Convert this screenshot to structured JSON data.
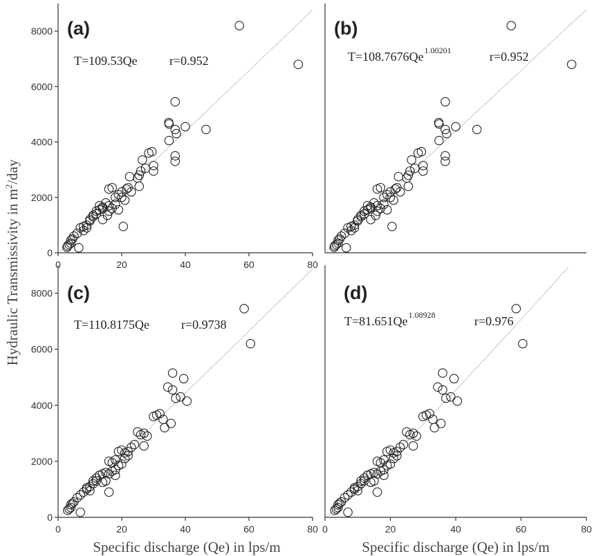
{
  "figure": {
    "ylabel": "Hydraulic Transmissivity in m",
    "ylabel_sup": "2",
    "ylabel_tail": "/day",
    "xlabel": "Specific discharge (Qe) in lps/m"
  },
  "chart_data": [
    {
      "type": "scatter",
      "panel": "(a)",
      "equation": "T=109.53Qe",
      "exponent": "",
      "r_text": "r=0.952",
      "xlim": [
        0,
        80
      ],
      "ylim": [
        0,
        9000
      ],
      "xticks": [
        "0",
        "20",
        "40",
        "60",
        "80"
      ],
      "yticks": [
        "0",
        "2000",
        "4000",
        "6000",
        "8000"
      ],
      "x_tick_values": [
        0,
        20,
        40,
        60,
        80
      ],
      "y_tick_values": [
        0,
        2000,
        4000,
        6000,
        8000
      ],
      "fit": {
        "slope": 109.53,
        "exponent": 1
      },
      "points": [
        [
          57,
          8200
        ],
        [
          75.5,
          6800
        ],
        [
          36.8,
          5450
        ],
        [
          34.8,
          4700
        ],
        [
          34.9,
          4650
        ],
        [
          36.8,
          4450
        ],
        [
          37.2,
          4300
        ],
        [
          40,
          4550
        ],
        [
          46.5,
          4450
        ],
        [
          34.9,
          4050
        ],
        [
          36.8,
          3500
        ],
        [
          36.8,
          3300
        ],
        [
          28.5,
          3600
        ],
        [
          29.5,
          3650
        ],
        [
          26.5,
          3350
        ],
        [
          27.5,
          3050
        ],
        [
          26,
          2950
        ],
        [
          25.5,
          2800
        ],
        [
          30,
          3150
        ],
        [
          30,
          2950
        ],
        [
          21.5,
          2300
        ],
        [
          22,
          2350
        ],
        [
          20,
          2200
        ],
        [
          22.5,
          2750
        ],
        [
          25,
          2700
        ],
        [
          25.5,
          2400
        ],
        [
          19,
          2100
        ],
        [
          18,
          2000
        ],
        [
          16,
          2300
        ],
        [
          17,
          2350
        ],
        [
          15,
          1800
        ],
        [
          16,
          1700
        ],
        [
          14,
          1600
        ],
        [
          13,
          1550
        ],
        [
          12,
          1400
        ],
        [
          11,
          1300
        ],
        [
          10,
          1200
        ],
        [
          12,
          1500
        ],
        [
          13,
          1700
        ],
        [
          14,
          1650
        ],
        [
          11,
          1350
        ],
        [
          10,
          1150
        ],
        [
          9,
          1000
        ],
        [
          8,
          950
        ],
        [
          7,
          900
        ],
        [
          8,
          800
        ],
        [
          6,
          700
        ],
        [
          5,
          600
        ],
        [
          4,
          450
        ],
        [
          4,
          350
        ],
        [
          3.5,
          300
        ],
        [
          3,
          250
        ],
        [
          2.8,
          200
        ],
        [
          4.5,
          500
        ],
        [
          16,
          1500
        ],
        [
          17,
          1600
        ],
        [
          18,
          1750
        ],
        [
          19,
          1550
        ],
        [
          20,
          2000
        ],
        [
          20.5,
          950
        ],
        [
          6.5,
          180
        ],
        [
          21,
          1900
        ],
        [
          23,
          2200
        ],
        [
          15.5,
          1350
        ],
        [
          14,
          1200
        ],
        [
          9,
          900
        ]
      ]
    },
    {
      "type": "scatter",
      "panel": "(b)",
      "equation": "T=108.7676Qe",
      "exponent": "1.00201",
      "r_text": "r=0.952",
      "xlim": [
        0,
        80
      ],
      "ylim": [
        0,
        9000
      ],
      "xticks": [],
      "yticks": [],
      "x_tick_values": [],
      "y_tick_values": [],
      "fit": {
        "slope": 108.7676,
        "exponent": 1.00201
      },
      "points": [
        [
          57,
          8200
        ],
        [
          75.5,
          6800
        ],
        [
          36.8,
          5450
        ],
        [
          34.8,
          4700
        ],
        [
          34.9,
          4650
        ],
        [
          36.8,
          4450
        ],
        [
          37.2,
          4300
        ],
        [
          40,
          4550
        ],
        [
          46.5,
          4450
        ],
        [
          34.9,
          4050
        ],
        [
          36.8,
          3500
        ],
        [
          36.8,
          3300
        ],
        [
          28.5,
          3600
        ],
        [
          29.5,
          3650
        ],
        [
          26.5,
          3350
        ],
        [
          27.5,
          3050
        ],
        [
          26,
          2950
        ],
        [
          25.5,
          2800
        ],
        [
          30,
          3150
        ],
        [
          30,
          2950
        ],
        [
          21.5,
          2300
        ],
        [
          22,
          2350
        ],
        [
          20,
          2200
        ],
        [
          22.5,
          2750
        ],
        [
          25,
          2700
        ],
        [
          25.5,
          2400
        ],
        [
          19,
          2100
        ],
        [
          18,
          2000
        ],
        [
          16,
          2300
        ],
        [
          17,
          2350
        ],
        [
          15,
          1800
        ],
        [
          16,
          1700
        ],
        [
          14,
          1600
        ],
        [
          13,
          1550
        ],
        [
          12,
          1400
        ],
        [
          11,
          1300
        ],
        [
          10,
          1200
        ],
        [
          12,
          1500
        ],
        [
          13,
          1700
        ],
        [
          14,
          1650
        ],
        [
          11,
          1350
        ],
        [
          10,
          1150
        ],
        [
          9,
          1000
        ],
        [
          8,
          950
        ],
        [
          7,
          900
        ],
        [
          8,
          800
        ],
        [
          6,
          700
        ],
        [
          5,
          600
        ],
        [
          4,
          450
        ],
        [
          4,
          350
        ],
        [
          3.5,
          300
        ],
        [
          3,
          250
        ],
        [
          2.8,
          200
        ],
        [
          4.5,
          500
        ],
        [
          16,
          1500
        ],
        [
          17,
          1600
        ],
        [
          18,
          1750
        ],
        [
          19,
          1550
        ],
        [
          20,
          2000
        ],
        [
          20.5,
          950
        ],
        [
          6.5,
          180
        ],
        [
          21,
          1900
        ],
        [
          23,
          2200
        ],
        [
          15.5,
          1350
        ],
        [
          14,
          1200
        ],
        [
          9,
          900
        ]
      ]
    },
    {
      "type": "scatter",
      "panel": "(c)",
      "equation": "T=110.8175Qe",
      "exponent": "",
      "r_text": "r=0.9738",
      "xlim": [
        0,
        80
      ],
      "ylim": [
        0,
        9000
      ],
      "xticks": [
        "0",
        "20",
        "40",
        "60",
        "80"
      ],
      "yticks": [
        "0",
        "2000",
        "4000",
        "6000",
        "8000"
      ],
      "x_tick_values": [
        0,
        20,
        40,
        60,
        80
      ],
      "y_tick_values": [
        0,
        2000,
        4000,
        6000,
        8000
      ],
      "fit": {
        "slope": 110.8175,
        "exponent": 1
      },
      "points": [
        [
          58.5,
          7450
        ],
        [
          60.5,
          6200
        ],
        [
          36,
          5150
        ],
        [
          39.5,
          4950
        ],
        [
          34.5,
          4650
        ],
        [
          36,
          4550
        ],
        [
          37,
          4250
        ],
        [
          38.5,
          4300
        ],
        [
          40.5,
          4150
        ],
        [
          35.5,
          3350
        ],
        [
          33.5,
          3200
        ],
        [
          31,
          3650
        ],
        [
          32,
          3700
        ],
        [
          30,
          3600
        ],
        [
          33,
          3500
        ],
        [
          27,
          3000
        ],
        [
          28,
          2900
        ],
        [
          26,
          2950
        ],
        [
          25,
          3050
        ],
        [
          27,
          2550
        ],
        [
          24,
          2600
        ],
        [
          23,
          2500
        ],
        [
          21,
          2300
        ],
        [
          19,
          2350
        ],
        [
          20,
          2400
        ],
        [
          22,
          2200
        ],
        [
          18,
          2050
        ],
        [
          17,
          1950
        ],
        [
          16,
          2000
        ],
        [
          19,
          1850
        ],
        [
          18,
          1700
        ],
        [
          15,
          1600
        ],
        [
          14,
          1550
        ],
        [
          13,
          1500
        ],
        [
          12,
          1300
        ],
        [
          11,
          1200
        ],
        [
          10,
          1100
        ],
        [
          12,
          1400
        ],
        [
          13,
          1500
        ],
        [
          9,
          1050
        ],
        [
          8,
          900
        ],
        [
          10,
          950
        ],
        [
          7,
          800
        ],
        [
          6,
          700
        ],
        [
          5,
          550
        ],
        [
          4,
          450
        ],
        [
          4,
          350
        ],
        [
          3.5,
          300
        ],
        [
          3,
          250
        ],
        [
          4.5,
          500
        ],
        [
          16,
          1550
        ],
        [
          17,
          1650
        ],
        [
          15,
          1300
        ],
        [
          14,
          1250
        ],
        [
          7,
          180
        ],
        [
          16,
          900
        ],
        [
          20,
          1900
        ],
        [
          21,
          2100
        ],
        [
          9,
          1000
        ],
        [
          11,
          1300
        ],
        [
          22,
          2350
        ],
        [
          18,
          1500
        ]
      ]
    },
    {
      "type": "scatter",
      "panel": "(d)",
      "equation": "T=81.651Qe",
      "exponent": "1.08928",
      "r_text": "r=0.976",
      "xlim": [
        0,
        80
      ],
      "ylim": [
        0,
        9000
      ],
      "xticks": [
        "0",
        "20",
        "40",
        "60",
        "80"
      ],
      "yticks": [],
      "x_tick_values": [
        0,
        20,
        40,
        60,
        80
      ],
      "y_tick_values": [],
      "fit": {
        "slope": 81.651,
        "exponent": 1.08928
      },
      "points": [
        [
          58.5,
          7450
        ],
        [
          60.5,
          6200
        ],
        [
          36,
          5150
        ],
        [
          39.5,
          4950
        ],
        [
          34.5,
          4650
        ],
        [
          36,
          4550
        ],
        [
          37,
          4250
        ],
        [
          38.5,
          4300
        ],
        [
          40.5,
          4150
        ],
        [
          35.5,
          3350
        ],
        [
          33.5,
          3200
        ],
        [
          31,
          3650
        ],
        [
          32,
          3700
        ],
        [
          30,
          3600
        ],
        [
          33,
          3500
        ],
        [
          27,
          3000
        ],
        [
          28,
          2900
        ],
        [
          26,
          2950
        ],
        [
          25,
          3050
        ],
        [
          27,
          2550
        ],
        [
          24,
          2600
        ],
        [
          23,
          2500
        ],
        [
          21,
          2300
        ],
        [
          19,
          2350
        ],
        [
          20,
          2400
        ],
        [
          22,
          2200
        ],
        [
          18,
          2050
        ],
        [
          17,
          1950
        ],
        [
          16,
          2000
        ],
        [
          19,
          1850
        ],
        [
          18,
          1700
        ],
        [
          15,
          1600
        ],
        [
          14,
          1550
        ],
        [
          13,
          1500
        ],
        [
          12,
          1300
        ],
        [
          11,
          1200
        ],
        [
          10,
          1100
        ],
        [
          12,
          1400
        ],
        [
          13,
          1500
        ],
        [
          9,
          1050
        ],
        [
          8,
          900
        ],
        [
          10,
          950
        ],
        [
          7,
          800
        ],
        [
          6,
          700
        ],
        [
          5,
          550
        ],
        [
          4,
          450
        ],
        [
          4,
          350
        ],
        [
          3.5,
          300
        ],
        [
          3,
          250
        ],
        [
          4.5,
          500
        ],
        [
          16,
          1550
        ],
        [
          17,
          1650
        ],
        [
          15,
          1300
        ],
        [
          14,
          1250
        ],
        [
          7,
          180
        ],
        [
          16,
          900
        ],
        [
          20,
          1900
        ],
        [
          21,
          2100
        ],
        [
          9,
          1000
        ],
        [
          11,
          1300
        ],
        [
          22,
          2350
        ],
        [
          18,
          1500
        ]
      ]
    }
  ]
}
